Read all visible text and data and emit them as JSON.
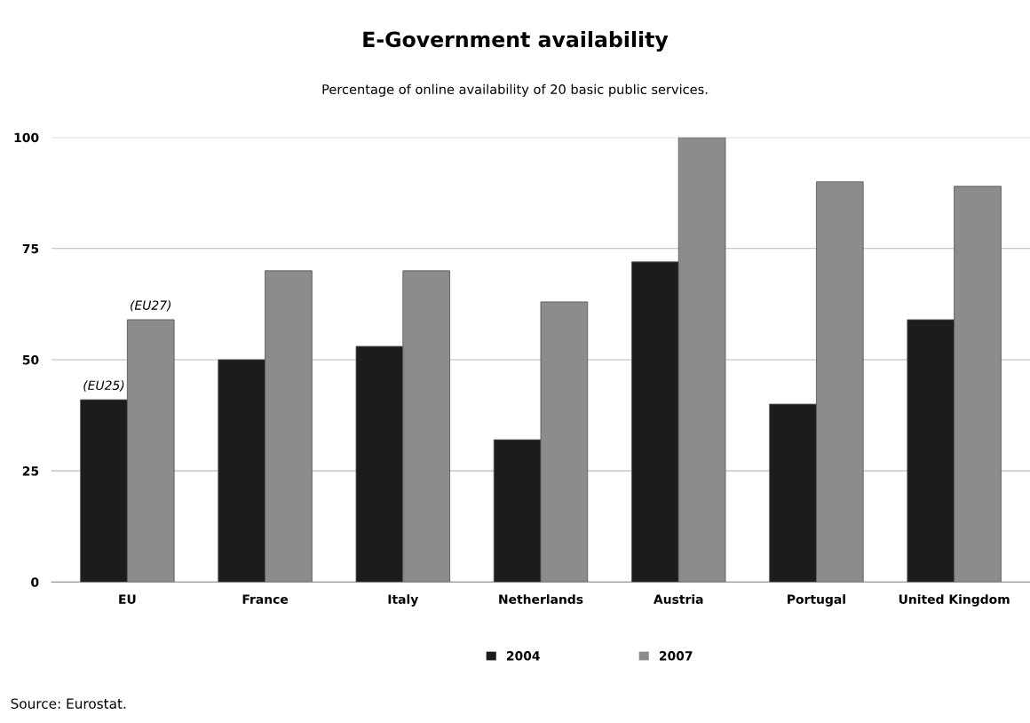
{
  "chart_data": {
    "type": "bar",
    "title": "E-Government availability",
    "subtitle": "Percentage of online availability of 20 basic public services.",
    "categories": [
      "EU",
      "France",
      "Italy",
      "Netherlands",
      "Austria",
      "Portugal",
      "United Kingdom"
    ],
    "series": [
      {
        "name": "2004",
        "color": "#1c1c1c",
        "values": [
          41,
          50,
          53,
          32,
          72,
          40,
          59
        ]
      },
      {
        "name": "2007",
        "color": "#8c8c8c",
        "values": [
          59,
          70,
          70,
          63,
          100,
          90,
          89
        ]
      }
    ],
    "ylim": [
      0,
      100
    ],
    "yticks": [
      0,
      25,
      50,
      75,
      100
    ],
    "grid": "y",
    "legend": "bottom",
    "annotations": [
      {
        "text": "(EU25)",
        "x": "EU",
        "y": 41
      },
      {
        "text": "(EU27)",
        "x": "EU",
        "y": 59
      },
      "Source: Eurostat."
    ]
  }
}
